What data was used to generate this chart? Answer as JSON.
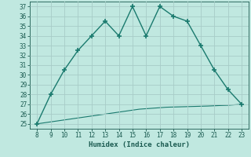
{
  "x": [
    8,
    9,
    10,
    11,
    12,
    13,
    14,
    15,
    16,
    17,
    18,
    19,
    20,
    21,
    22,
    23
  ],
  "y_main": [
    25,
    28,
    30.5,
    32.5,
    34,
    35.5,
    34,
    37,
    34,
    37,
    36,
    35.5,
    33,
    30.5,
    28.5,
    27
  ],
  "x_smooth": [
    8,
    8.1,
    8.2,
    8.3,
    8.4,
    8.5,
    8.6,
    8.7,
    8.8,
    8.9,
    9.0,
    9.2,
    9.4,
    9.6,
    9.8,
    10.0,
    10.3,
    10.6,
    11.0,
    11.5,
    12.0,
    12.5,
    13.0,
    13.5,
    14.0,
    14.5,
    15.0,
    15.5,
    16.0,
    16.5,
    17.0,
    17.5,
    18.0,
    18.5,
    19.0,
    19.5,
    20.0,
    20.5,
    21.0,
    21.5,
    22.0,
    22.5,
    23.0
  ],
  "y_smooth": [
    25.0,
    25.02,
    25.04,
    25.06,
    25.08,
    25.1,
    25.12,
    25.14,
    25.16,
    25.18,
    25.2,
    25.24,
    25.28,
    25.32,
    25.36,
    25.4,
    25.46,
    25.52,
    25.6,
    25.7,
    25.8,
    25.9,
    26.0,
    26.1,
    26.2,
    26.3,
    26.4,
    26.5,
    26.55,
    26.6,
    26.65,
    26.7,
    26.72,
    26.74,
    26.76,
    26.78,
    26.8,
    26.82,
    26.85,
    26.88,
    26.9,
    26.95,
    27.0
  ],
  "line_color": "#1a7a6e",
  "bg_color": "#c0e8e0",
  "grid_color": "#a8ccc8",
  "xlabel": "Humidex (Indice chaleur)",
  "xlim": [
    7.5,
    23.5
  ],
  "ylim": [
    24.5,
    37.5
  ],
  "xticks": [
    8,
    9,
    10,
    11,
    12,
    13,
    14,
    15,
    16,
    17,
    18,
    19,
    20,
    21,
    22,
    23
  ],
  "yticks": [
    25,
    26,
    27,
    28,
    29,
    30,
    31,
    32,
    33,
    34,
    35,
    36,
    37
  ],
  "marker": "+",
  "markersize": 5,
  "linewidth": 1.0,
  "smooth_linewidth": 0.8,
  "font_color": "#1a5a50",
  "tick_fontsize": 5.5,
  "xlabel_fontsize": 6.5
}
